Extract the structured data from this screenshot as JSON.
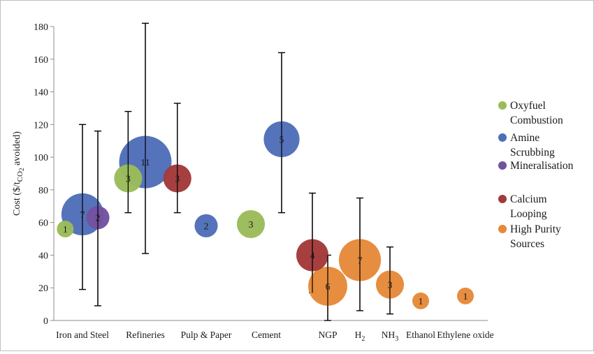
{
  "chart_data": {
    "type": "scatter",
    "subtype": "bubble-with-error-bars",
    "title": "",
    "ylabel_parts": {
      "main": "Cost ($/t",
      "sub": "CO",
      "sub2": "2",
      "rest": " avoided)"
    },
    "ylim": [
      0,
      180
    ],
    "yticks": [
      0,
      20,
      40,
      60,
      80,
      100,
      120,
      140,
      160,
      180
    ],
    "grid": false,
    "categories": [
      {
        "label": "Iron and Steel"
      },
      {
        "label": "Refineries"
      },
      {
        "label": "Pulp & Paper"
      },
      {
        "label": "Cement"
      },
      {
        "label": "NGP"
      },
      {
        "label": "H",
        "sub": "2"
      },
      {
        "label": "NH",
        "sub": "3"
      },
      {
        "label": "Ethanol"
      },
      {
        "label": "Ethylene oxide"
      }
    ],
    "legend_position": "right",
    "series": [
      {
        "name_lines": [
          "Oxyfuel",
          "Combustion"
        ],
        "color": "#9bbb59",
        "key": "oxy"
      },
      {
        "name_lines": [
          "Amine",
          "Scrubbing"
        ],
        "color": "#4f6eb8",
        "key": "amine"
      },
      {
        "name_lines": [
          "Mineralisation"
        ],
        "color": "#7451a0",
        "key": "mineral"
      },
      {
        "name_lines": [
          "Calcium",
          "Looping"
        ],
        "color": "#a33a3a",
        "key": "calcium"
      },
      {
        "name_lines": [
          "High Purity",
          "Sources"
        ],
        "color": "#e6893a",
        "key": "hps"
      }
    ],
    "points": [
      {
        "series": "oxy",
        "category": "Iron and Steel",
        "offset": -0.28,
        "y": 56,
        "count": 1,
        "label": "1"
      },
      {
        "series": "amine",
        "category": "Iron and Steel",
        "offset": 0.0,
        "y": 65,
        "count": 7,
        "label": "7",
        "err_low": 19,
        "err_high": 120
      },
      {
        "series": "mineral",
        "category": "Iron and Steel",
        "offset": 0.25,
        "y": 63,
        "count": 2,
        "label": "2",
        "err_low": 9,
        "err_high": 116
      },
      {
        "series": "oxy",
        "category": "Refineries",
        "offset": -0.28,
        "y": 87,
        "count": 3,
        "label": "3",
        "err_low": 66,
        "err_high": 128
      },
      {
        "series": "amine",
        "category": "Refineries",
        "offset": 0.0,
        "y": 97,
        "count": 11,
        "label": "11",
        "err_low": 41,
        "err_high": 182
      },
      {
        "series": "calcium",
        "category": "Refineries",
        "offset": 0.52,
        "y": 87,
        "count": 3,
        "label": "3",
        "err_low": 66,
        "err_high": 133
      },
      {
        "series": "amine",
        "category": "Pulp & Paper",
        "offset": 0.0,
        "y": 58,
        "count": 2,
        "label": "2"
      },
      {
        "series": "amine",
        "category": "Cement",
        "offset": 0.25,
        "y": 111,
        "count": 5,
        "label": "5",
        "err_low": 66,
        "err_high": 164
      },
      {
        "series": "oxy",
        "category": "Cement",
        "offset": -0.25,
        "y": 59,
        "count": 3,
        "label": "3"
      },
      {
        "series": "calcium",
        "category": "Cement",
        "offset": 0.75,
        "y": 40,
        "count": 4,
        "label": "4",
        "err_low": 17,
        "err_high": 78
      },
      {
        "series": "hps",
        "category": "NGP",
        "offset": 0.0,
        "y": 21,
        "count": 6,
        "label": "6",
        "err_low": 0,
        "err_high": 40
      },
      {
        "series": "hps",
        "category": "H2",
        "offset": 0.0,
        "y": 37,
        "count": 7,
        "label": "7",
        "err_low": 6,
        "err_high": 75
      },
      {
        "series": "hps",
        "category": "NH3",
        "offset": 0.0,
        "y": 22,
        "count": 3,
        "label": "3",
        "err_low": 4,
        "err_high": 45
      },
      {
        "series": "hps",
        "category": "Ethanol",
        "offset": 0.0,
        "y": 12,
        "count": 1,
        "label": "1"
      },
      {
        "series": "hps",
        "category": "Ethylene oxide",
        "offset": 0.0,
        "y": 15,
        "count": 1,
        "label": "1"
      }
    ]
  }
}
